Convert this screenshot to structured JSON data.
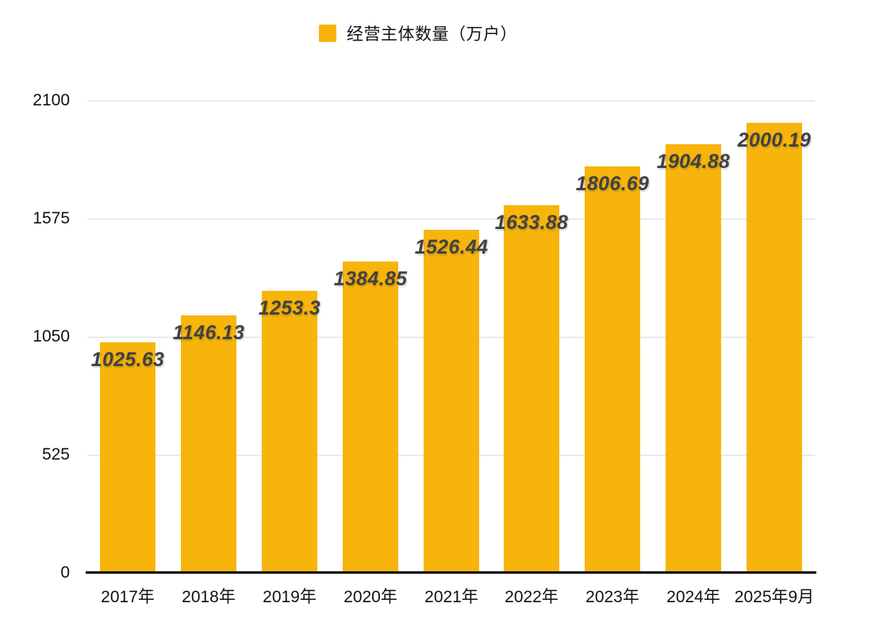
{
  "legend": {
    "label": "经营主体数量（万户）"
  },
  "colors": {
    "bar": "#F7B50C",
    "grid": "#DCDCDC",
    "axis": "#000000",
    "value_label": "#414141",
    "tick_label": "#111111",
    "background": "#FFFFFF"
  },
  "chart_data": {
    "type": "bar",
    "title": "",
    "legend": "经营主体数量（万户）",
    "legend_position": "top-center",
    "categories": [
      "2017年",
      "2018年",
      "2019年",
      "2020年",
      "2021年",
      "2022年",
      "2023年",
      "2024年",
      "2025年9月"
    ],
    "values": [
      1025.63,
      1146.13,
      1253.3,
      1384.85,
      1526.44,
      1633.88,
      1806.69,
      1904.88,
      2000.19
    ],
    "value_labels": [
      "1025.63",
      "1146.13",
      "1253.3",
      "1384.85",
      "1526.44",
      "1633.88",
      "1806.69",
      "1904.88",
      "2000.19"
    ],
    "series_name": "经营主体数量（万户）",
    "xlabel": "",
    "ylabel": "",
    "y_ticks": [
      0,
      525,
      1050,
      1575,
      2100
    ],
    "ylim": [
      0,
      2100
    ],
    "grid": true
  }
}
